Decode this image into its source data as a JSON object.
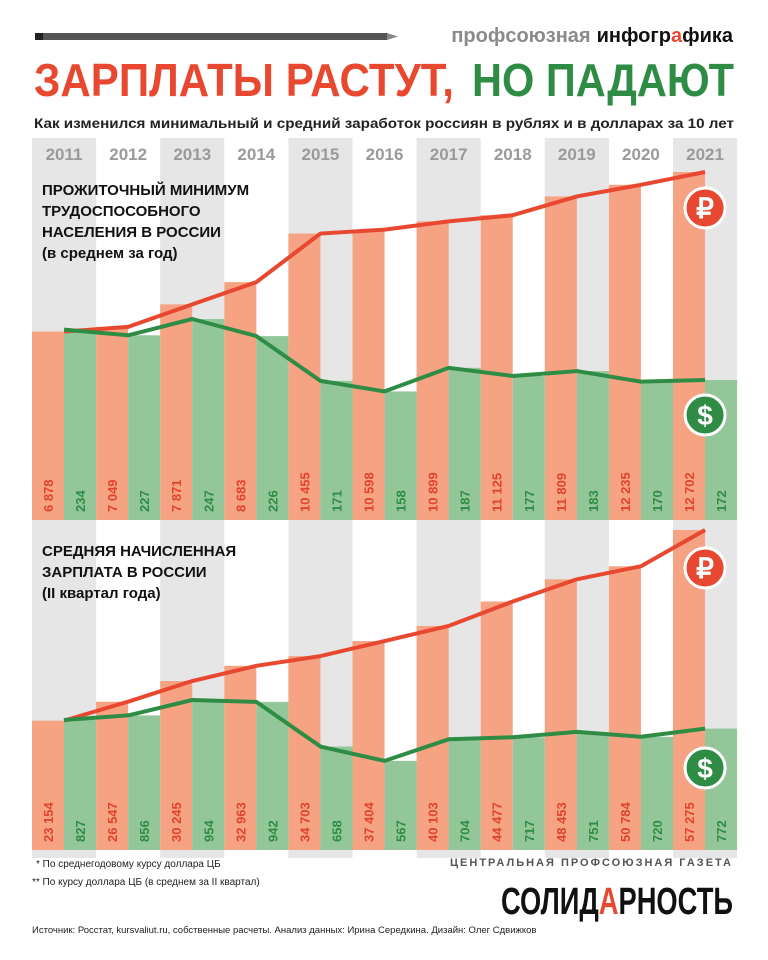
{
  "header": {
    "brand_light": "профсоюзная",
    "brand_bold_start": "инфогр",
    "brand_accent": "а",
    "brand_bold_end": "фика"
  },
  "title_red": "ЗАРПЛАТЫ РАСТУТ,",
  "title_green": "НО ПАДАЮТ",
  "subtitle": "Как изменился минимальный и средний заработок россиян в рублях и в долларах за 10 лет",
  "chart_data": [
    {
      "type": "bar",
      "title_lines": [
        "ПРОЖИТОЧНЫЙ МИНИМУМ",
        "ТРУДОСПОСОБНОГО",
        "НАСЕЛЕНИЯ В РОССИИ",
        "(в среднем за год)"
      ],
      "categories": [
        "2011",
        "2012",
        "2013",
        "2014",
        "2015",
        "2016",
        "2017",
        "2018",
        "2019",
        "2020",
        "2021"
      ],
      "series": [
        {
          "color": "#f5a383",
          "line_color": "#e8482f",
          "label_color": "#e0442c",
          "symbol": "₽",
          "values": [
            6878,
            7049,
            7871,
            8683,
            10455,
            10598,
            10899,
            11125,
            11809,
            12235,
            12702
          ],
          "value_labels": [
            "6 878",
            "7 049",
            "7 871",
            "8 683",
            "10 455",
            "10 598",
            "10 899",
            "11 125",
            "11 809",
            "12 235",
            "12 702"
          ]
        },
        {
          "color": "#93c79a",
          "line_color": "#2f8c45",
          "label_color": "#2f8c45",
          "symbol": "$",
          "values": [
            234,
            227,
            247,
            226,
            171,
            158,
            187,
            177,
            183,
            170,
            172
          ]
        }
      ]
    },
    {
      "type": "bar",
      "title_lines": [
        "СРЕДНЯЯ НАЧИСЛЕННАЯ",
        "ЗАРПЛАТА В РОССИИ",
        "(II квартал года)"
      ],
      "series": [
        {
          "color": "#f5a383",
          "line_color": "#e8482f",
          "label_color": "#e0442c",
          "symbol": "₽",
          "values": [
            23154,
            26547,
            30245,
            32963,
            34703,
            37404,
            40103,
            44477,
            48453,
            50784,
            57275
          ],
          "value_labels": [
            "23 154",
            "26 547",
            "30 245",
            "32 963",
            "34 703",
            "37 404",
            "40 103",
            "44 477",
            "48 453",
            "50 784",
            "57 275"
          ]
        },
        {
          "color": "#93c79a",
          "line_color": "#2f8c45",
          "label_color": "#2f8c45",
          "symbol": "$",
          "values": [
            827,
            856,
            954,
            942,
            658,
            567,
            704,
            717,
            751,
            720,
            772
          ]
        }
      ]
    }
  ],
  "footnotes": [
    "* По среднегодовому курсу доллара ЦБ",
    "** По курсу доллара ЦБ (в среднем за II квартал)"
  ],
  "newspaper": {
    "tagline": "ЦЕНТРАЛЬНАЯ ПРОФСОЮЗНАЯ ГАЗЕТА",
    "logo_start": "СОЛИД",
    "logo_accent": "А",
    "logo_end": "РНОСТЬ"
  },
  "source": "Источник: Росстат, kursvaliut.ru, собственные расчеты. Анализ данных: Ирина Середкина. Дизайн: Олег Сдвижков"
}
